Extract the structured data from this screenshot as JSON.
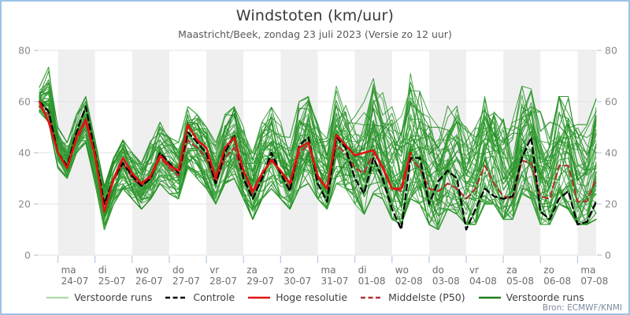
{
  "header": {
    "title": "Windstoten (km/uur)",
    "subtitle": "Maastricht/Beek, zondag 23 juli 2023 (Versie zo 12 uur)"
  },
  "footer": {
    "source": "Bron: ECMWF/KNMI"
  },
  "colors": {
    "border": "#9dc3e6",
    "band": "#efefef",
    "grid": "#e3e3e3",
    "tick": "#b7c9dd",
    "axis_text": "#8c8c8c",
    "label_text": "#6e6e6e",
    "control": "#000000",
    "hires": "#e21111",
    "p50": "#b13333",
    "ensemble_light": "#b4d9aa",
    "ensemble_dark": "#1e7d1e"
  },
  "legend": {
    "items": [
      {
        "label": "Verstoorde runs",
        "color": "#b4d9aa",
        "style": "solid"
      },
      {
        "label": "Controle",
        "color": "#000000",
        "style": "dashed"
      },
      {
        "label": "Hoge resolutie",
        "color": "#e21111",
        "style": "solid"
      },
      {
        "label": "Middelste (P50)",
        "color": "#b13333",
        "style": "dashed"
      },
      {
        "label": "Verstoorde runs",
        "color": "#1e7d1e",
        "style": "solid"
      }
    ]
  },
  "chart_data": {
    "type": "line",
    "title": "Windstoten (km/uur)",
    "subtitle": "Maastricht/Beek, zondag 23 juli 2023 (Versie zo 12 uur)",
    "ylabel": "km/uur",
    "ylim": [
      0,
      80
    ],
    "yticks": [
      0,
      20,
      40,
      60,
      80
    ],
    "grid": "horizontal",
    "x_start": "zo 23-07 12:00",
    "x_step_hours": 6,
    "x_points": 61,
    "x_day_ticks": [
      {
        "day": "ma",
        "date": "24-07"
      },
      {
        "day": "di",
        "date": "25-07"
      },
      {
        "day": "wo",
        "date": "26-07"
      },
      {
        "day": "do",
        "date": "27-07"
      },
      {
        "day": "vr",
        "date": "28-07"
      },
      {
        "day": "za",
        "date": "29-07"
      },
      {
        "day": "zo",
        "date": "30-07"
      },
      {
        "day": "ma",
        "date": "31-07"
      },
      {
        "day": "di",
        "date": "01-08"
      },
      {
        "day": "wo",
        "date": "02-08"
      },
      {
        "day": "do",
        "date": "03-08"
      },
      {
        "day": "vr",
        "date": "04-08"
      },
      {
        "day": "za",
        "date": "05-08"
      },
      {
        "day": "zo",
        "date": "06-08"
      },
      {
        "day": "ma",
        "date": "07-08"
      }
    ],
    "shaded_days": "alternate gray bands starting at ma 24-07",
    "series": [
      {
        "name": "Controle",
        "color": "#000000",
        "style": "dashed",
        "values": [
          60,
          56,
          40,
          35,
          48,
          58,
          40,
          20,
          30,
          36,
          31,
          27,
          30,
          40,
          36,
          32,
          48,
          44,
          40,
          28,
          40,
          47,
          30,
          22,
          30,
          40,
          32,
          25,
          43,
          46,
          28,
          21,
          46,
          42,
          30,
          24,
          38,
          30,
          18,
          10,
          38,
          38,
          20,
          29,
          33,
          30,
          10,
          18,
          26,
          23,
          22,
          23,
          38,
          46,
          17,
          14,
          22,
          25,
          12,
          13,
          21
        ]
      },
      {
        "name": "Hoge resolutie",
        "color": "#e21111",
        "style": "solid",
        "values": [
          60,
          52,
          40,
          34,
          46,
          53,
          39,
          17,
          30,
          38,
          32,
          28,
          31,
          39,
          35,
          33,
          51,
          45,
          42,
          30,
          42,
          46,
          33,
          25,
          32,
          37,
          33,
          28,
          42,
          44,
          31,
          26,
          47,
          43,
          39,
          40,
          41,
          34,
          26,
          26,
          40
        ]
      },
      {
        "name": "Middelste (P50)",
        "color": "#b13333",
        "style": "dashed",
        "values": [
          58,
          55,
          40,
          34,
          45,
          52,
          38,
          19,
          29,
          36,
          30,
          27,
          30,
          38,
          34,
          31,
          45,
          42,
          38,
          28,
          38,
          42,
          30,
          24,
          31,
          38,
          32,
          26,
          40,
          43,
          30,
          26,
          43,
          40,
          34,
          32,
          40,
          35,
          26,
          25,
          38,
          34,
          26,
          25,
          28,
          26,
          22,
          26,
          35,
          28,
          23,
          22,
          37,
          36,
          23,
          22,
          35,
          35,
          21,
          21,
          30
        ]
      },
      {
        "name": "Verstoorde runs",
        "color": "#2f992f",
        "style": "solid",
        "members": 50,
        "envelope_min": [
          56,
          52,
          34,
          30,
          40,
          44,
          28,
          10,
          20,
          26,
          22,
          18,
          22,
          28,
          24,
          22,
          34,
          30,
          26,
          20,
          28,
          30,
          22,
          14,
          22,
          26,
          22,
          18,
          26,
          28,
          22,
          18,
          28,
          26,
          20,
          16,
          24,
          22,
          14,
          12,
          22,
          20,
          12,
          10,
          18,
          16,
          12,
          12,
          20,
          20,
          14,
          14,
          24,
          22,
          12,
          12,
          20,
          18,
          12,
          12,
          14
        ],
        "envelope_max": [
          66,
          74,
          50,
          44,
          55,
          62,
          45,
          27,
          38,
          45,
          40,
          36,
          45,
          52,
          46,
          44,
          58,
          55,
          50,
          44,
          55,
          58,
          50,
          40,
          52,
          58,
          52,
          46,
          60,
          62,
          55,
          50,
          66,
          62,
          56,
          60,
          71,
          65,
          58,
          55,
          71,
          64,
          55,
          50,
          60,
          62,
          55,
          50,
          62,
          65,
          58,
          55,
          66,
          65,
          56,
          52,
          62,
          62,
          55,
          52,
          61
        ]
      }
    ],
    "legend_position": "bottom center",
    "source": "Bron: ECMWF/KNMI"
  }
}
